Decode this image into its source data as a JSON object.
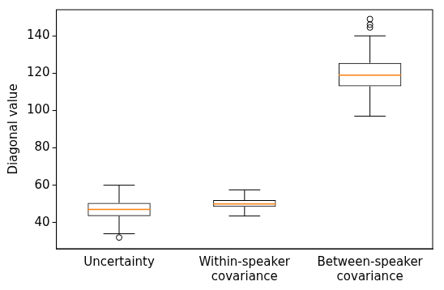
{
  "chart_data": {
    "type": "box",
    "y_label": "Diagonal value",
    "categories": [
      "Uncertainty",
      [
        "Within-speaker",
        "covariance"
      ],
      [
        "Between-speaker",
        "covariance"
      ]
    ],
    "boxes": [
      {
        "whislo": 34,
        "q1": 43.5,
        "median": 47,
        "q3": 50.5,
        "whishi": 60,
        "fliers": [
          32
        ]
      },
      {
        "whislo": 43.5,
        "q1": 48.5,
        "median": 50,
        "q3": 52,
        "whishi": 57.5,
        "fliers": []
      },
      {
        "whislo": 97,
        "q1": 113,
        "median": 119,
        "q3": 125.5,
        "whishi": 140,
        "fliers": [
          144.5,
          146,
          149
        ]
      }
    ],
    "color": "#000000",
    "ylim": [
      26,
      154
    ],
    "yticks": [
      40,
      60,
      80,
      100,
      120,
      140
    ],
    "grid": false
  }
}
